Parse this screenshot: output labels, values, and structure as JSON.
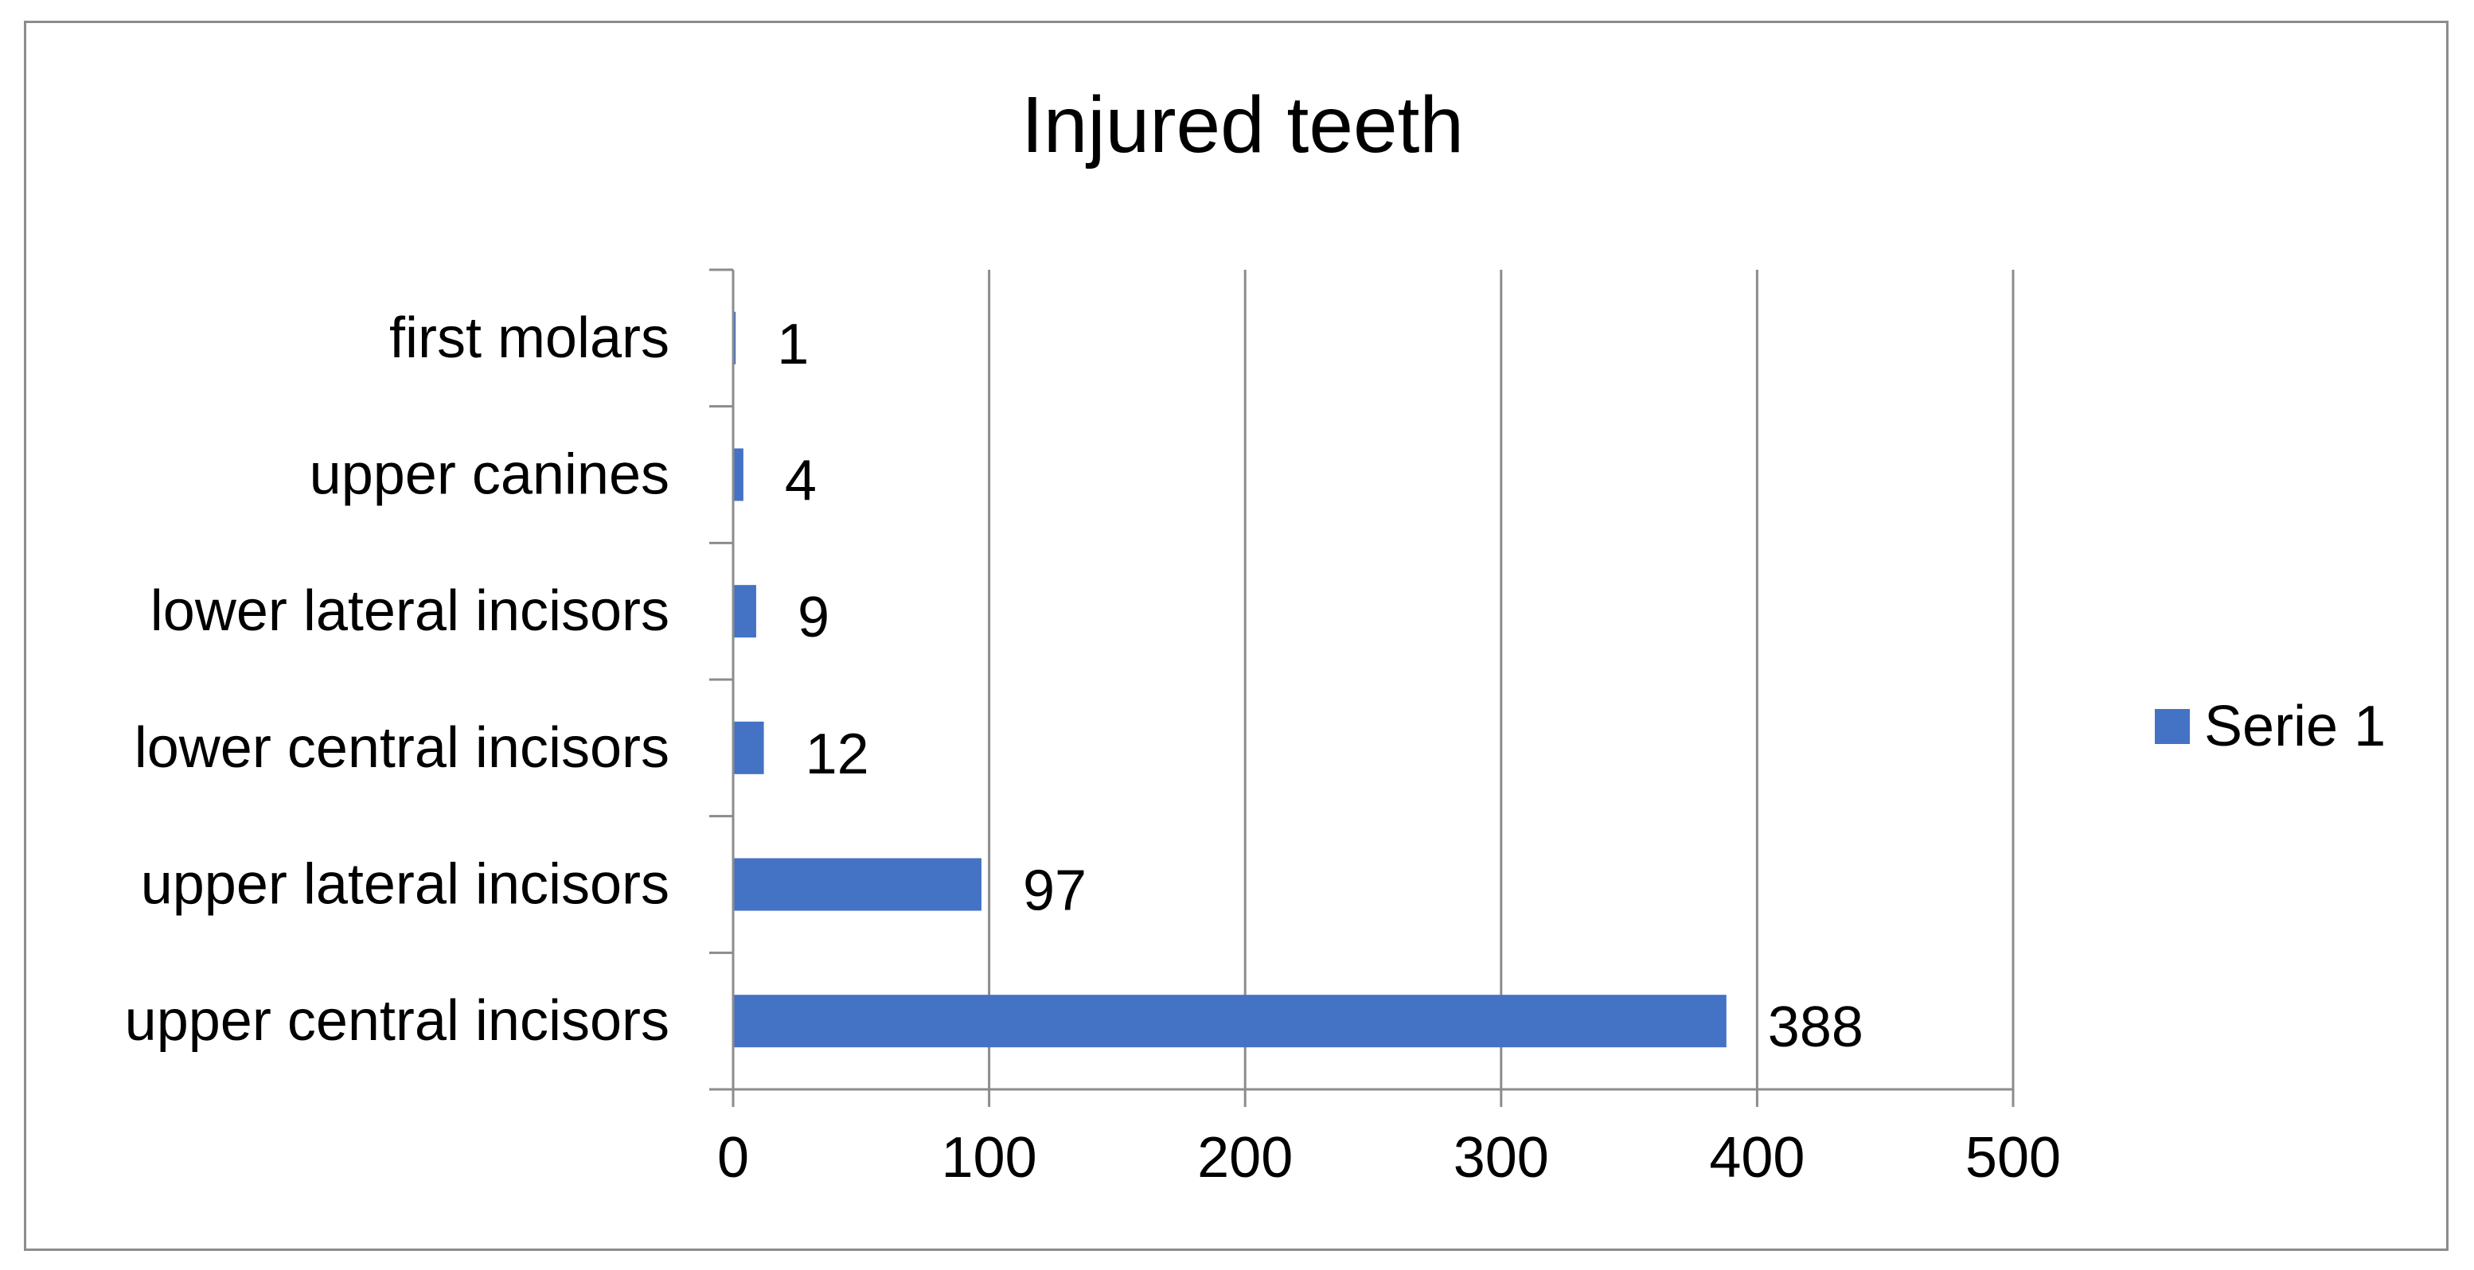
{
  "chart_data": {
    "type": "bar",
    "orientation": "horizontal",
    "title": "Injured teeth",
    "categories": [
      "upper central incisors",
      "upper lateral incisors",
      "lower central incisors",
      "lower lateral incisors",
      "upper canines",
      "first molars"
    ],
    "series": [
      {
        "name": "Serie 1",
        "values": [
          388,
          97,
          12,
          9,
          4,
          1
        ],
        "color": "#4472c4"
      }
    ],
    "data_labels": [
      "388",
      "97",
      "12",
      "9",
      "4",
      "1"
    ],
    "xticks": [
      "0",
      "100",
      "200",
      "300",
      "400",
      "500"
    ],
    "xlim": [
      0,
      500
    ],
    "xlabel": "",
    "ylabel": "",
    "grid": "vertical major gridlines",
    "legend_position": "right",
    "grid_color": "#8c8c8c"
  }
}
